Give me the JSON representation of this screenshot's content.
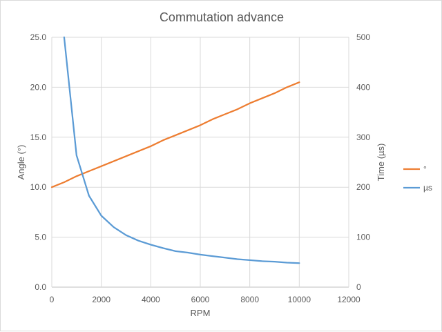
{
  "chart_data": {
    "type": "line",
    "title": "Commutation advance",
    "xlabel": "RPM",
    "ylabel": "Angle (°)",
    "y2label": "Time (µs)",
    "xlim": [
      0,
      12000
    ],
    "ylim": [
      0,
      25
    ],
    "y2lim": [
      0,
      500
    ],
    "x_ticks": [
      "0",
      "2000",
      "4000",
      "6000",
      "8000",
      "10000",
      "12000"
    ],
    "y_ticks": [
      "0.0",
      "5.0",
      "10.0",
      "15.0",
      "20.0",
      "25.0"
    ],
    "y2_ticks": [
      "0",
      "100",
      "200",
      "300",
      "400",
      "500"
    ],
    "grid": true,
    "legend_position": "right",
    "series": [
      {
        "name": "°",
        "axis": "left",
        "color": "#ed7d31",
        "x": [
          0,
          500,
          1000,
          1500,
          2000,
          2500,
          3000,
          3500,
          4000,
          4500,
          5000,
          5500,
          6000,
          6500,
          7000,
          7500,
          8000,
          8500,
          9000,
          9500,
          10000
        ],
        "values": [
          10.0,
          10.5,
          11.1,
          11.6,
          12.1,
          12.6,
          13.1,
          13.6,
          14.1,
          14.7,
          15.2,
          15.7,
          16.2,
          16.8,
          17.3,
          17.8,
          18.4,
          18.9,
          19.4,
          20.0,
          20.5
        ]
      },
      {
        "name": "µs",
        "axis": "right",
        "color": "#5b9bd5",
        "x": [
          500,
          1000,
          1500,
          2000,
          2500,
          3000,
          3500,
          4000,
          4500,
          5000,
          5500,
          6000,
          6500,
          7000,
          7500,
          8000,
          8500,
          9000,
          9500,
          10000
        ],
        "values": [
          500,
          264,
          183,
          143,
          120,
          104,
          93,
          85,
          78,
          72,
          69,
          65,
          62,
          59,
          56,
          54,
          52,
          51,
          49,
          48
        ]
      }
    ]
  }
}
